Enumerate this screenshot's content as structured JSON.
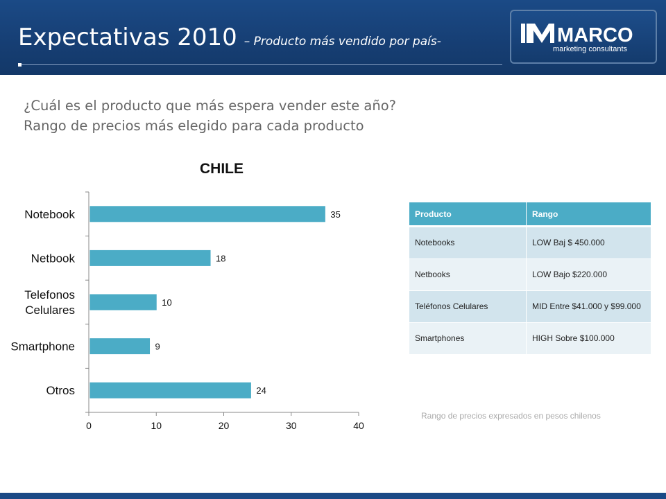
{
  "header": {
    "title": "Expectativas 2010",
    "subtitle": "– Producto más vendido por país-"
  },
  "logo": {
    "name": "MARCO",
    "tagline": "marketing consultants"
  },
  "questions": [
    "¿Cuál es el producto que más espera vender este año?",
    "Rango de precios más elegido para cada producto"
  ],
  "chart_data": {
    "type": "bar",
    "orientation": "horizontal",
    "title": "CHILE",
    "categories": [
      [
        "Notebook"
      ],
      [
        "Netbook"
      ],
      [
        "Telefonos",
        "Celulares"
      ],
      [
        "Smartphone"
      ],
      [
        "Otros"
      ]
    ],
    "values": [
      35,
      18,
      10,
      9,
      24
    ],
    "xlim": [
      0,
      40
    ],
    "xticks": [
      0,
      10,
      20,
      30,
      40
    ],
    "grid": false,
    "bar_color": "#4bacc6"
  },
  "table": {
    "headers": [
      "Producto",
      "Rango"
    ],
    "rows": [
      [
        "Notebooks",
        "LOW Baj $ 450.000"
      ],
      [
        "Netbooks",
        "LOW Bajo $220.000"
      ],
      [
        "Teléfonos Celulares",
        "MID Entre $41.000 y $99.000"
      ],
      [
        "Smartphones",
        "HIGH Sobre $100.000"
      ]
    ],
    "header_color": "#4bacc6"
  },
  "note": "Rango de precios expresados en pesos chilenos"
}
